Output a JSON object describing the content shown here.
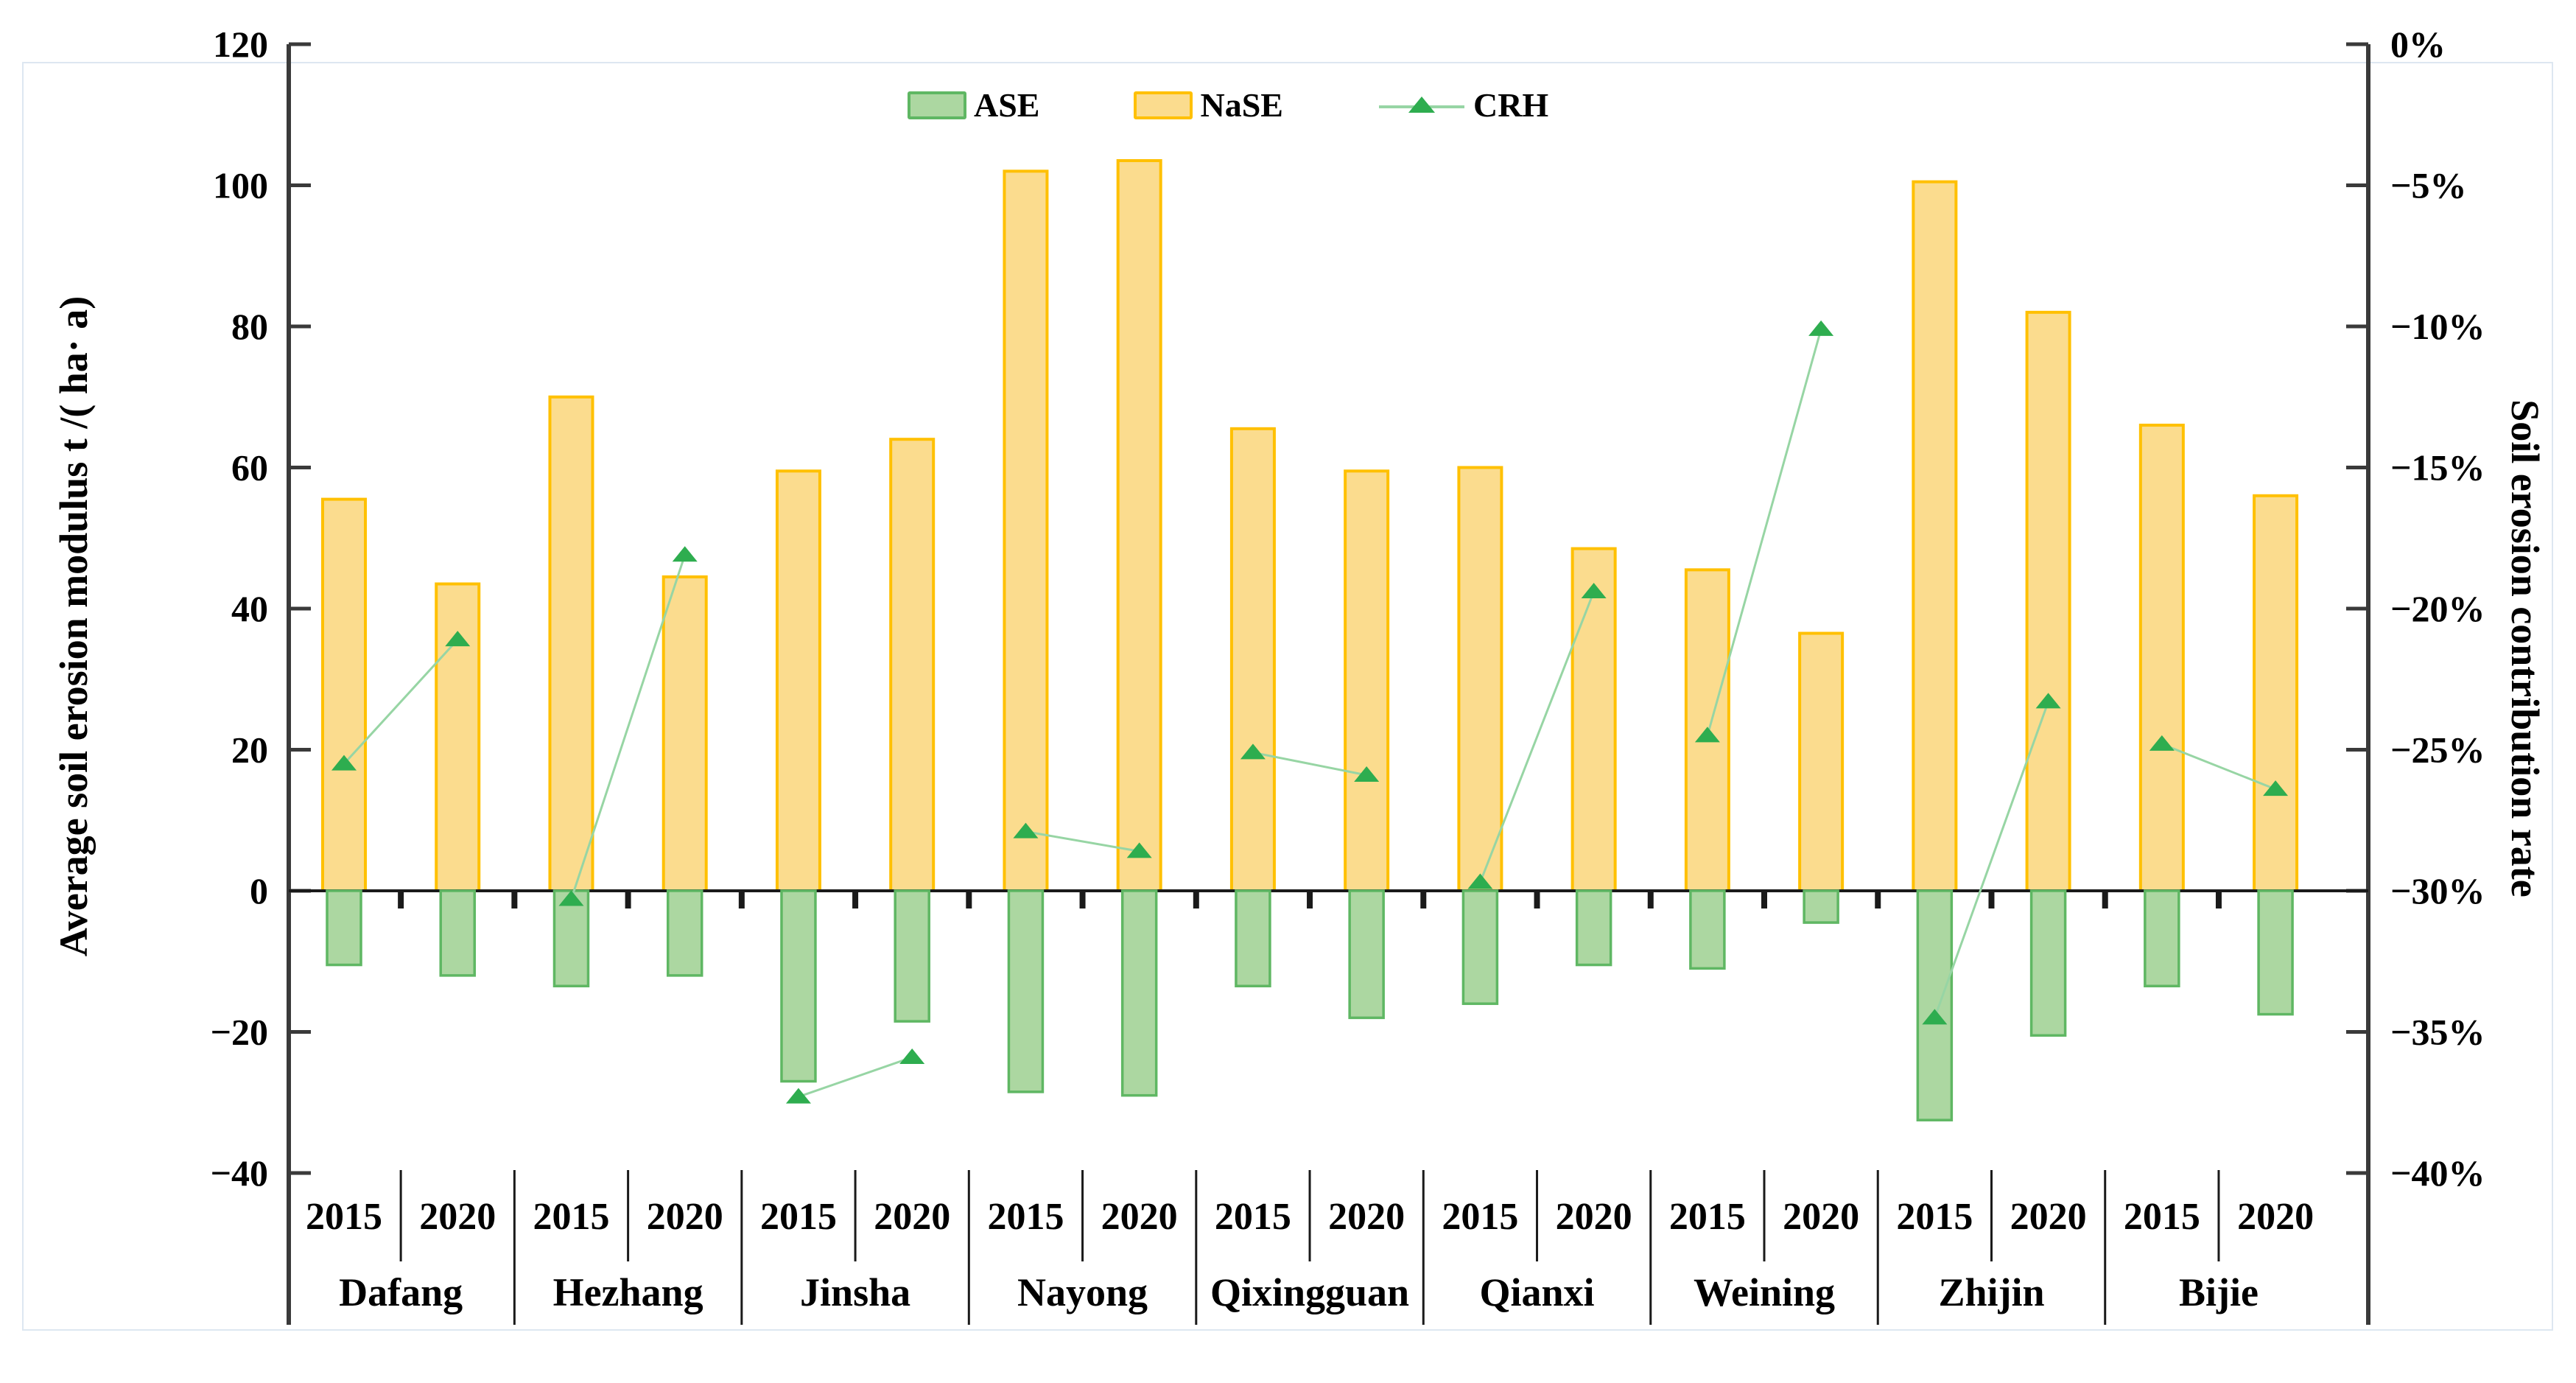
{
  "legend": {
    "items": [
      {
        "label": "ASE",
        "kind": "bar",
        "fill": "#acd7a1",
        "border": "#5fb763"
      },
      {
        "label": "NaSE",
        "kind": "bar",
        "fill": "#fbdc8e",
        "border": "#ffc000"
      },
      {
        "label": "CRH",
        "kind": "line",
        "line": "#97d5a4",
        "marker": "#2ead4f"
      }
    ]
  },
  "left_axis": {
    "title": "Average soil erosion modulus t /( ha· a)",
    "ticks": [
      120,
      100,
      80,
      60,
      40,
      20,
      0,
      -20,
      -40
    ],
    "range": [
      -40,
      120
    ]
  },
  "right_axis": {
    "title": "Soil erosion contribution rate",
    "ticks": [
      "0%",
      "−5%",
      "−10%",
      "−15%",
      "−20%",
      "−25%",
      "−30%",
      "−35%",
      "−40%"
    ],
    "range_pct": [
      -40,
      0
    ]
  },
  "chart_data": {
    "type": "bar+line",
    "title": "",
    "categories": [
      "Dafang",
      "Hezhang",
      "Jinsha",
      "Nayong",
      "Qixingguan",
      "Qianxi",
      "Weining",
      "Zhijin",
      "Bijie"
    ],
    "years": [
      "2015",
      "2020"
    ],
    "grid": false,
    "legend_position": "top-center",
    "series": [
      {
        "name": "ASE",
        "kind": "bar",
        "axis": "left",
        "unit": "t/(ha·a)",
        "fill": "#acd7a1",
        "border": "#5fb763",
        "values": {
          "2015": [
            -10.5,
            -13.5,
            -27.0,
            -28.5,
            -13.5,
            -16.0,
            -11.0,
            -32.5,
            -13.5
          ],
          "2020": [
            -12.0,
            -12.0,
            -18.5,
            -29.0,
            -18.0,
            -10.5,
            -4.5,
            -20.5,
            -17.5
          ]
        }
      },
      {
        "name": "NaSE",
        "kind": "bar",
        "axis": "left",
        "unit": "t/(ha·a)",
        "fill": "#fbdc8e",
        "border": "#ffc000",
        "values": {
          "2015": [
            55.5,
            70.0,
            59.5,
            102.0,
            65.5,
            60.0,
            45.5,
            100.5,
            66.0
          ],
          "2020": [
            43.5,
            44.5,
            64.0,
            103.5,
            59.5,
            48.5,
            36.5,
            82.0,
            56.0
          ]
        }
      },
      {
        "name": "CRH",
        "kind": "line",
        "axis": "right",
        "unit": "%",
        "line": "#97d5a4",
        "marker": "#2ead4f",
        "values_pct": {
          "2015": [
            -25.5,
            -30.3,
            -37.3,
            -27.9,
            -25.1,
            -29.7,
            -24.5,
            -34.5,
            -24.8
          ],
          "2020": [
            -21.1,
            -18.1,
            -35.9,
            -28.6,
            -25.9,
            -19.4,
            -10.1,
            -23.3,
            -26.4
          ]
        }
      }
    ],
    "left_ylim": [
      -40,
      120
    ],
    "right_ylim_pct": [
      -40,
      0
    ],
    "axis_mapping_note": "right axis: left_value = (pct + 30) * 4"
  }
}
